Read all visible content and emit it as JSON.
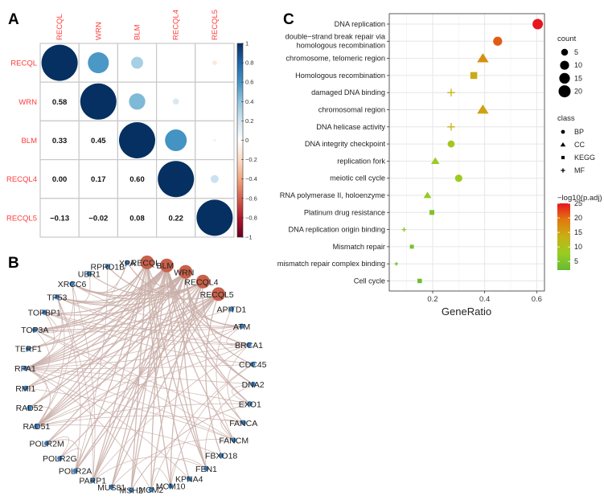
{
  "panels": {
    "a": "A",
    "b": "B",
    "c": "C"
  },
  "chart_data": [
    {
      "type": "heatmap",
      "name": "correlation-matrix",
      "genes": [
        "RECQL",
        "WRN",
        "BLM",
        "RECQL4",
        "RECQL5"
      ],
      "matrix": [
        [
          1.0,
          0.58,
          0.33,
          0.0,
          -0.13
        ],
        [
          0.58,
          1.0,
          0.45,
          0.17,
          -0.02
        ],
        [
          0.33,
          0.45,
          1.0,
          0.6,
          0.08
        ],
        [
          0.0,
          0.17,
          0.6,
          1.0,
          0.22
        ],
        [
          -0.13,
          -0.02,
          0.08,
          0.22,
          1.0
        ]
      ],
      "lower_labels": [
        [
          "",
          "",
          "",
          "",
          ""
        ],
        [
          "0.58",
          "",
          "",
          "",
          ""
        ],
        [
          "0.33",
          "0.45",
          "",
          "",
          ""
        ],
        [
          "0.00",
          "0.17",
          "0.60",
          "",
          ""
        ],
        [
          "−0.13",
          "−0.02",
          "0.08",
          "0.22",
          ""
        ]
      ],
      "colorbar": {
        "range": [
          -1,
          1
        ],
        "ticks": [
          "1",
          "0.8",
          "0.6",
          "0.4",
          "0.2",
          "0",
          "−0.2",
          "−0.4",
          "−0.6",
          "−0.8",
          "−1"
        ]
      },
      "palette": [
        "#67001F",
        "#B2182B",
        "#D6604D",
        "#F4A582",
        "#FDDBC7",
        "#FFFFFF",
        "#D1E5F0",
        "#92C5DE",
        "#4393C3",
        "#2166AC",
        "#053061"
      ]
    },
    {
      "type": "network",
      "name": "ppi-network",
      "hub_color": "#c8604a",
      "node_color": "#3a7fc0",
      "edge_color": "#c9aea8",
      "hubs": [
        "RECQL",
        "BLM",
        "WRN",
        "RECQL4",
        "RECQL5"
      ],
      "nodes": [
        "RECQL",
        "BLM",
        "WRN",
        "RECQL4",
        "RECQL5",
        "APITD1",
        "ATM",
        "BRCA1",
        "CDC45",
        "DNA2",
        "EXO1",
        "FANCA",
        "FANCM",
        "FBXO18",
        "FEN1",
        "KPNA4",
        "MCM10",
        "MCM2",
        "MSH2",
        "MUS81",
        "PARP1",
        "POLR2A",
        "POLR2G",
        "POLR2M",
        "RAD51",
        "RAD52",
        "RMI1",
        "RPA1",
        "TERF1",
        "TOP3A",
        "TOPBP1",
        "TP53",
        "XRCC6",
        "UBR1",
        "RPRD1B",
        "XPA"
      ],
      "edges": [
        [
          "RECQL",
          "BLM"
        ],
        [
          "RECQL",
          "WRN"
        ],
        [
          "RECQL",
          "RPA1"
        ],
        [
          "RECQL",
          "MSH2"
        ],
        [
          "RECQL",
          "PARP1"
        ],
        [
          "RECQL",
          "FEN1"
        ],
        [
          "RECQL",
          "TOP3A"
        ],
        [
          "RECQL",
          "KPNA4"
        ],
        [
          "RECQL",
          "XRCC6"
        ],
        [
          "RECQL",
          "RAD51"
        ],
        [
          "RECQL",
          "POLR2A"
        ],
        [
          "RECQL",
          "MCM10"
        ],
        [
          "BLM",
          "WRN"
        ],
        [
          "BLM",
          "TOP3A"
        ],
        [
          "BLM",
          "RMI1"
        ],
        [
          "BLM",
          "RPA1"
        ],
        [
          "BLM",
          "RAD51"
        ],
        [
          "BLM",
          "TP53"
        ],
        [
          "BLM",
          "ATM"
        ],
        [
          "BLM",
          "BRCA1"
        ],
        [
          "BLM",
          "DNA2"
        ],
        [
          "BLM",
          "EXO1"
        ],
        [
          "BLM",
          "FANCM"
        ],
        [
          "BLM",
          "FANCA"
        ],
        [
          "BLM",
          "MUS81"
        ],
        [
          "BLM",
          "MSH2"
        ],
        [
          "BLM",
          "TOPBP1"
        ],
        [
          "BLM",
          "RAD52"
        ],
        [
          "BLM",
          "MCM2"
        ],
        [
          "BLM",
          "FEN1"
        ],
        [
          "BLM",
          "TERF1"
        ],
        [
          "BLM",
          "PARP1"
        ],
        [
          "WRN",
          "RPA1"
        ],
        [
          "WRN",
          "FEN1"
        ],
        [
          "WRN",
          "XRCC6"
        ],
        [
          "WRN",
          "TP53"
        ],
        [
          "WRN",
          "PARP1"
        ],
        [
          "WRN",
          "RAD51"
        ],
        [
          "WRN",
          "DNA2"
        ],
        [
          "WRN",
          "EXO1"
        ],
        [
          "WRN",
          "TERF1"
        ],
        [
          "WRN",
          "MUS81"
        ],
        [
          "WRN",
          "ATM"
        ],
        [
          "WRN",
          "BRCA1"
        ],
        [
          "WRN",
          "POLR2M"
        ],
        [
          "WRN",
          "RAD52"
        ],
        [
          "WRN",
          "MSH2"
        ],
        [
          "WRN",
          "TOP3A"
        ],
        [
          "RECQL4",
          "MCM10"
        ],
        [
          "RECQL4",
          "MCM2"
        ],
        [
          "RECQL4",
          "CDC45"
        ],
        [
          "RECQL4",
          "TOPBP1"
        ],
        [
          "RECQL4",
          "RPA1"
        ],
        [
          "RECQL4",
          "TP53"
        ],
        [
          "RECQL4",
          "PARP1"
        ],
        [
          "RECQL4",
          "XRCC6"
        ],
        [
          "RECQL4",
          "RAD51"
        ],
        [
          "RECQL4",
          "UBR1"
        ],
        [
          "RECQL4",
          "POLR2A"
        ],
        [
          "RECQL4",
          "RPRD1B"
        ],
        [
          "RECQL5",
          "POLR2A"
        ],
        [
          "RECQL5",
          "POLR2G"
        ],
        [
          "RECQL5",
          "POLR2M"
        ],
        [
          "RECQL5",
          "RAD51"
        ],
        [
          "RECQL5",
          "RPA1"
        ],
        [
          "RECQL5",
          "MUS81"
        ],
        [
          "RECQL5",
          "XPA"
        ],
        [
          "RECQL5",
          "FBXO18"
        ],
        [
          "RECQL5",
          "TOP3A"
        ],
        [
          "RECQL5",
          "RMI1"
        ],
        [
          "RPA1",
          "RAD51"
        ],
        [
          "RPA1",
          "RAD52"
        ],
        [
          "RPA1",
          "TOPBP1"
        ],
        [
          "RPA1",
          "ATM"
        ],
        [
          "RPA1",
          "BRCA1"
        ],
        [
          "RPA1",
          "DNA2"
        ],
        [
          "RPA1",
          "EXO1"
        ],
        [
          "RPA1",
          "XPA"
        ],
        [
          "RPA1",
          "FANCM"
        ],
        [
          "RPA1",
          "TP53"
        ],
        [
          "RPA1",
          "CDC45"
        ],
        [
          "RPA1",
          "MCM2"
        ],
        [
          "RAD51",
          "BRCA1"
        ],
        [
          "RAD51",
          "RAD52"
        ],
        [
          "RAD51",
          "ATM"
        ],
        [
          "RAD51",
          "TP53"
        ],
        [
          "RAD51",
          "FBXO18"
        ],
        [
          "RAD51",
          "XRCC6"
        ],
        [
          "RAD51",
          "EXO1"
        ],
        [
          "RAD51",
          "FANCA"
        ],
        [
          "TOP3A",
          "RMI1"
        ],
        [
          "TOP3A",
          "FANCM"
        ],
        [
          "TOP3A",
          "APITD1"
        ],
        [
          "TOP3A",
          "FANCA"
        ],
        [
          "TOP3A",
          "TOPBP1"
        ],
        [
          "ATM",
          "TP53"
        ],
        [
          "ATM",
          "BRCA1"
        ],
        [
          "ATM",
          "XRCC6"
        ],
        [
          "ATM",
          "TOPBP1"
        ],
        [
          "BRCA1",
          "TP53"
        ],
        [
          "BRCA1",
          "TOPBP1"
        ],
        [
          "BRCA1",
          "FANCA"
        ],
        [
          "BRCA1",
          "PARP1"
        ],
        [
          "DNA2",
          "EXO1"
        ],
        [
          "DNA2",
          "FEN1"
        ],
        [
          "EXO1",
          "MSH2"
        ],
        [
          "FEN1",
          "PARP1"
        ],
        [
          "FEN1",
          "MCM10"
        ],
        [
          "FANCM",
          "APITD1"
        ],
        [
          "FANCM",
          "FANCA"
        ],
        [
          "FANCM",
          "RMI1"
        ],
        [
          "MCM2",
          "CDC45"
        ],
        [
          "MCM2",
          "MCM10"
        ],
        [
          "MCM10",
          "CDC45"
        ],
        [
          "MSH2",
          "EXO1"
        ],
        [
          "MUS81",
          "FANCM"
        ],
        [
          "PARP1",
          "XRCC6"
        ],
        [
          "PARP1",
          "TP53"
        ],
        [
          "POLR2A",
          "POLR2G"
        ],
        [
          "POLR2A",
          "POLR2M"
        ],
        [
          "POLR2A",
          "TP53"
        ],
        [
          "POLR2G",
          "POLR2M"
        ],
        [
          "POLR2A",
          "RPRD1B"
        ],
        [
          "TERF1",
          "XRCC6"
        ],
        [
          "TP53",
          "UBR1"
        ],
        [
          "KPNA4",
          "RPA1"
        ],
        [
          "XPA",
          "XRCC6"
        ],
        [
          "TOPBP1",
          "CDC45"
        ]
      ]
    },
    {
      "type": "scatter",
      "name": "enrichment-dotplot",
      "xlabel": "GeneRatio",
      "xlim": [
        0.033,
        0.63
      ],
      "xticks": [
        "0.2",
        "0.4",
        "0.6"
      ],
      "xtick_values": [
        0.2,
        0.4,
        0.6
      ],
      "terms": [
        {
          "term": "DNA replication",
          "class": "BP",
          "gene_ratio": 0.604,
          "count": 20,
          "neglog10_padj": 25
        },
        {
          "term": "double−strand break repair via\nhomologous recombination",
          "class": "BP",
          "gene_ratio": 0.45,
          "count": 15,
          "neglog10_padj": 21
        },
        {
          "term": "chromosome, telomeric region",
          "class": "CC",
          "gene_ratio": 0.393,
          "count": 13,
          "neglog10_padj": 17
        },
        {
          "term": "Homologous recombination",
          "class": "KEGG",
          "gene_ratio": 0.358,
          "count": 12,
          "neglog10_padj": 14
        },
        {
          "term": "damaged DNA binding",
          "class": "MF",
          "gene_ratio": 0.271,
          "count": 9,
          "neglog10_padj": 13
        },
        {
          "term": "chromosomal region",
          "class": "CC",
          "gene_ratio": 0.393,
          "count": 13,
          "neglog10_padj": 15
        },
        {
          "term": "DNA helicase activity",
          "class": "MF",
          "gene_ratio": 0.271,
          "count": 9,
          "neglog10_padj": 13
        },
        {
          "term": "DNA integrity checkpoint",
          "class": "BP",
          "gene_ratio": 0.271,
          "count": 9,
          "neglog10_padj": 9
        },
        {
          "term": "replication fork",
          "class": "CC",
          "gene_ratio": 0.21,
          "count": 7,
          "neglog10_padj": 8
        },
        {
          "term": "meiotic cell cycle",
          "class": "BP",
          "gene_ratio": 0.3,
          "count": 10,
          "neglog10_padj": 8
        },
        {
          "term": "RNA polymerase II, holoenzyme",
          "class": "CC",
          "gene_ratio": 0.18,
          "count": 6,
          "neglog10_padj": 7
        },
        {
          "term": "Platinum drug resistance",
          "class": "KEGG",
          "gene_ratio": 0.197,
          "count": 6,
          "neglog10_padj": 5
        },
        {
          "term": "DNA replication origin binding",
          "class": "MF",
          "gene_ratio": 0.09,
          "count": 3,
          "neglog10_padj": 6
        },
        {
          "term": "Mismatch repair",
          "class": "KEGG",
          "gene_ratio": 0.12,
          "count": 4,
          "neglog10_padj": 4
        },
        {
          "term": "mismatch repair complex binding",
          "class": "MF",
          "gene_ratio": 0.06,
          "count": 2,
          "neglog10_padj": 4
        },
        {
          "term": "Cell cycle",
          "class": "KEGG",
          "gene_ratio": 0.15,
          "count": 5,
          "neglog10_padj": 3
        }
      ],
      "legend": {
        "count_title": "count",
        "count_levels": [
          5,
          10,
          15,
          20
        ],
        "count_labels": [
          "5",
          "10",
          "15",
          "20"
        ],
        "class_title": "class",
        "classes": [
          "BP",
          "CC",
          "KEGG",
          "MF"
        ],
        "color_title": "−log10(p.adj)",
        "color_ticks": [
          "25",
          "20",
          "15",
          "10",
          "5"
        ],
        "color_tick_values": [
          25,
          20,
          15,
          10,
          5
        ],
        "color_range": [
          2,
          25
        ],
        "color_stops": [
          "#66bb33",
          "#99cc22",
          "#c8b015",
          "#e07a10",
          "#e8141e"
        ]
      }
    }
  ]
}
